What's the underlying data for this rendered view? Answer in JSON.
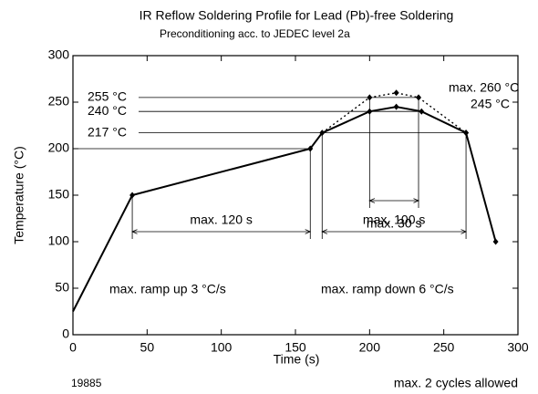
{
  "chart_data": {
    "type": "line",
    "title": "IR Reflow Soldering Profile for Lead (Pb)-free Soldering",
    "subtitle": "Preconditioning acc. to JEDEC level 2a",
    "xlabel": "Time (s)",
    "ylabel": "Temperature (°C)",
    "xlim": [
      0,
      300
    ],
    "ylim": [
      0,
      300
    ],
    "xticks": [
      0,
      50,
      100,
      150,
      200,
      250,
      300
    ],
    "yticks": [
      0,
      50,
      100,
      150,
      200,
      250,
      300
    ],
    "series": [
      {
        "color": "#000000",
        "style": "solid",
        "x": [
          0,
          40,
          160,
          168,
          200,
          218,
          235,
          265,
          285
        ],
        "values": [
          25,
          150,
          200,
          217,
          240,
          245,
          240,
          217,
          100
        ]
      },
      {
        "color": "#000000",
        "style": "dotted",
        "x": [
          168,
          200,
          218,
          233,
          265
        ],
        "values": [
          217,
          255,
          260,
          255,
          217
        ]
      }
    ],
    "reference_levels": [
      {
        "value": 255,
        "label": "255 °C"
      },
      {
        "value": 240,
        "label": "240 °C"
      },
      {
        "value": 217,
        "label": "217 °C"
      }
    ],
    "spans": [
      {
        "label": "max. 120 s",
        "from": 40,
        "to": 160
      },
      {
        "label": "max. 100 s",
        "from": 168,
        "to": 265
      },
      {
        "label": "max. 30 s",
        "from": 200,
        "to": 233
      }
    ],
    "annotations": [
      "max. 260 °C",
      "245 °C",
      "max. ramp up 3 °C/s",
      "max. ramp down 6 °C/s",
      "19885",
      "max. 2 cycles allowed"
    ]
  }
}
